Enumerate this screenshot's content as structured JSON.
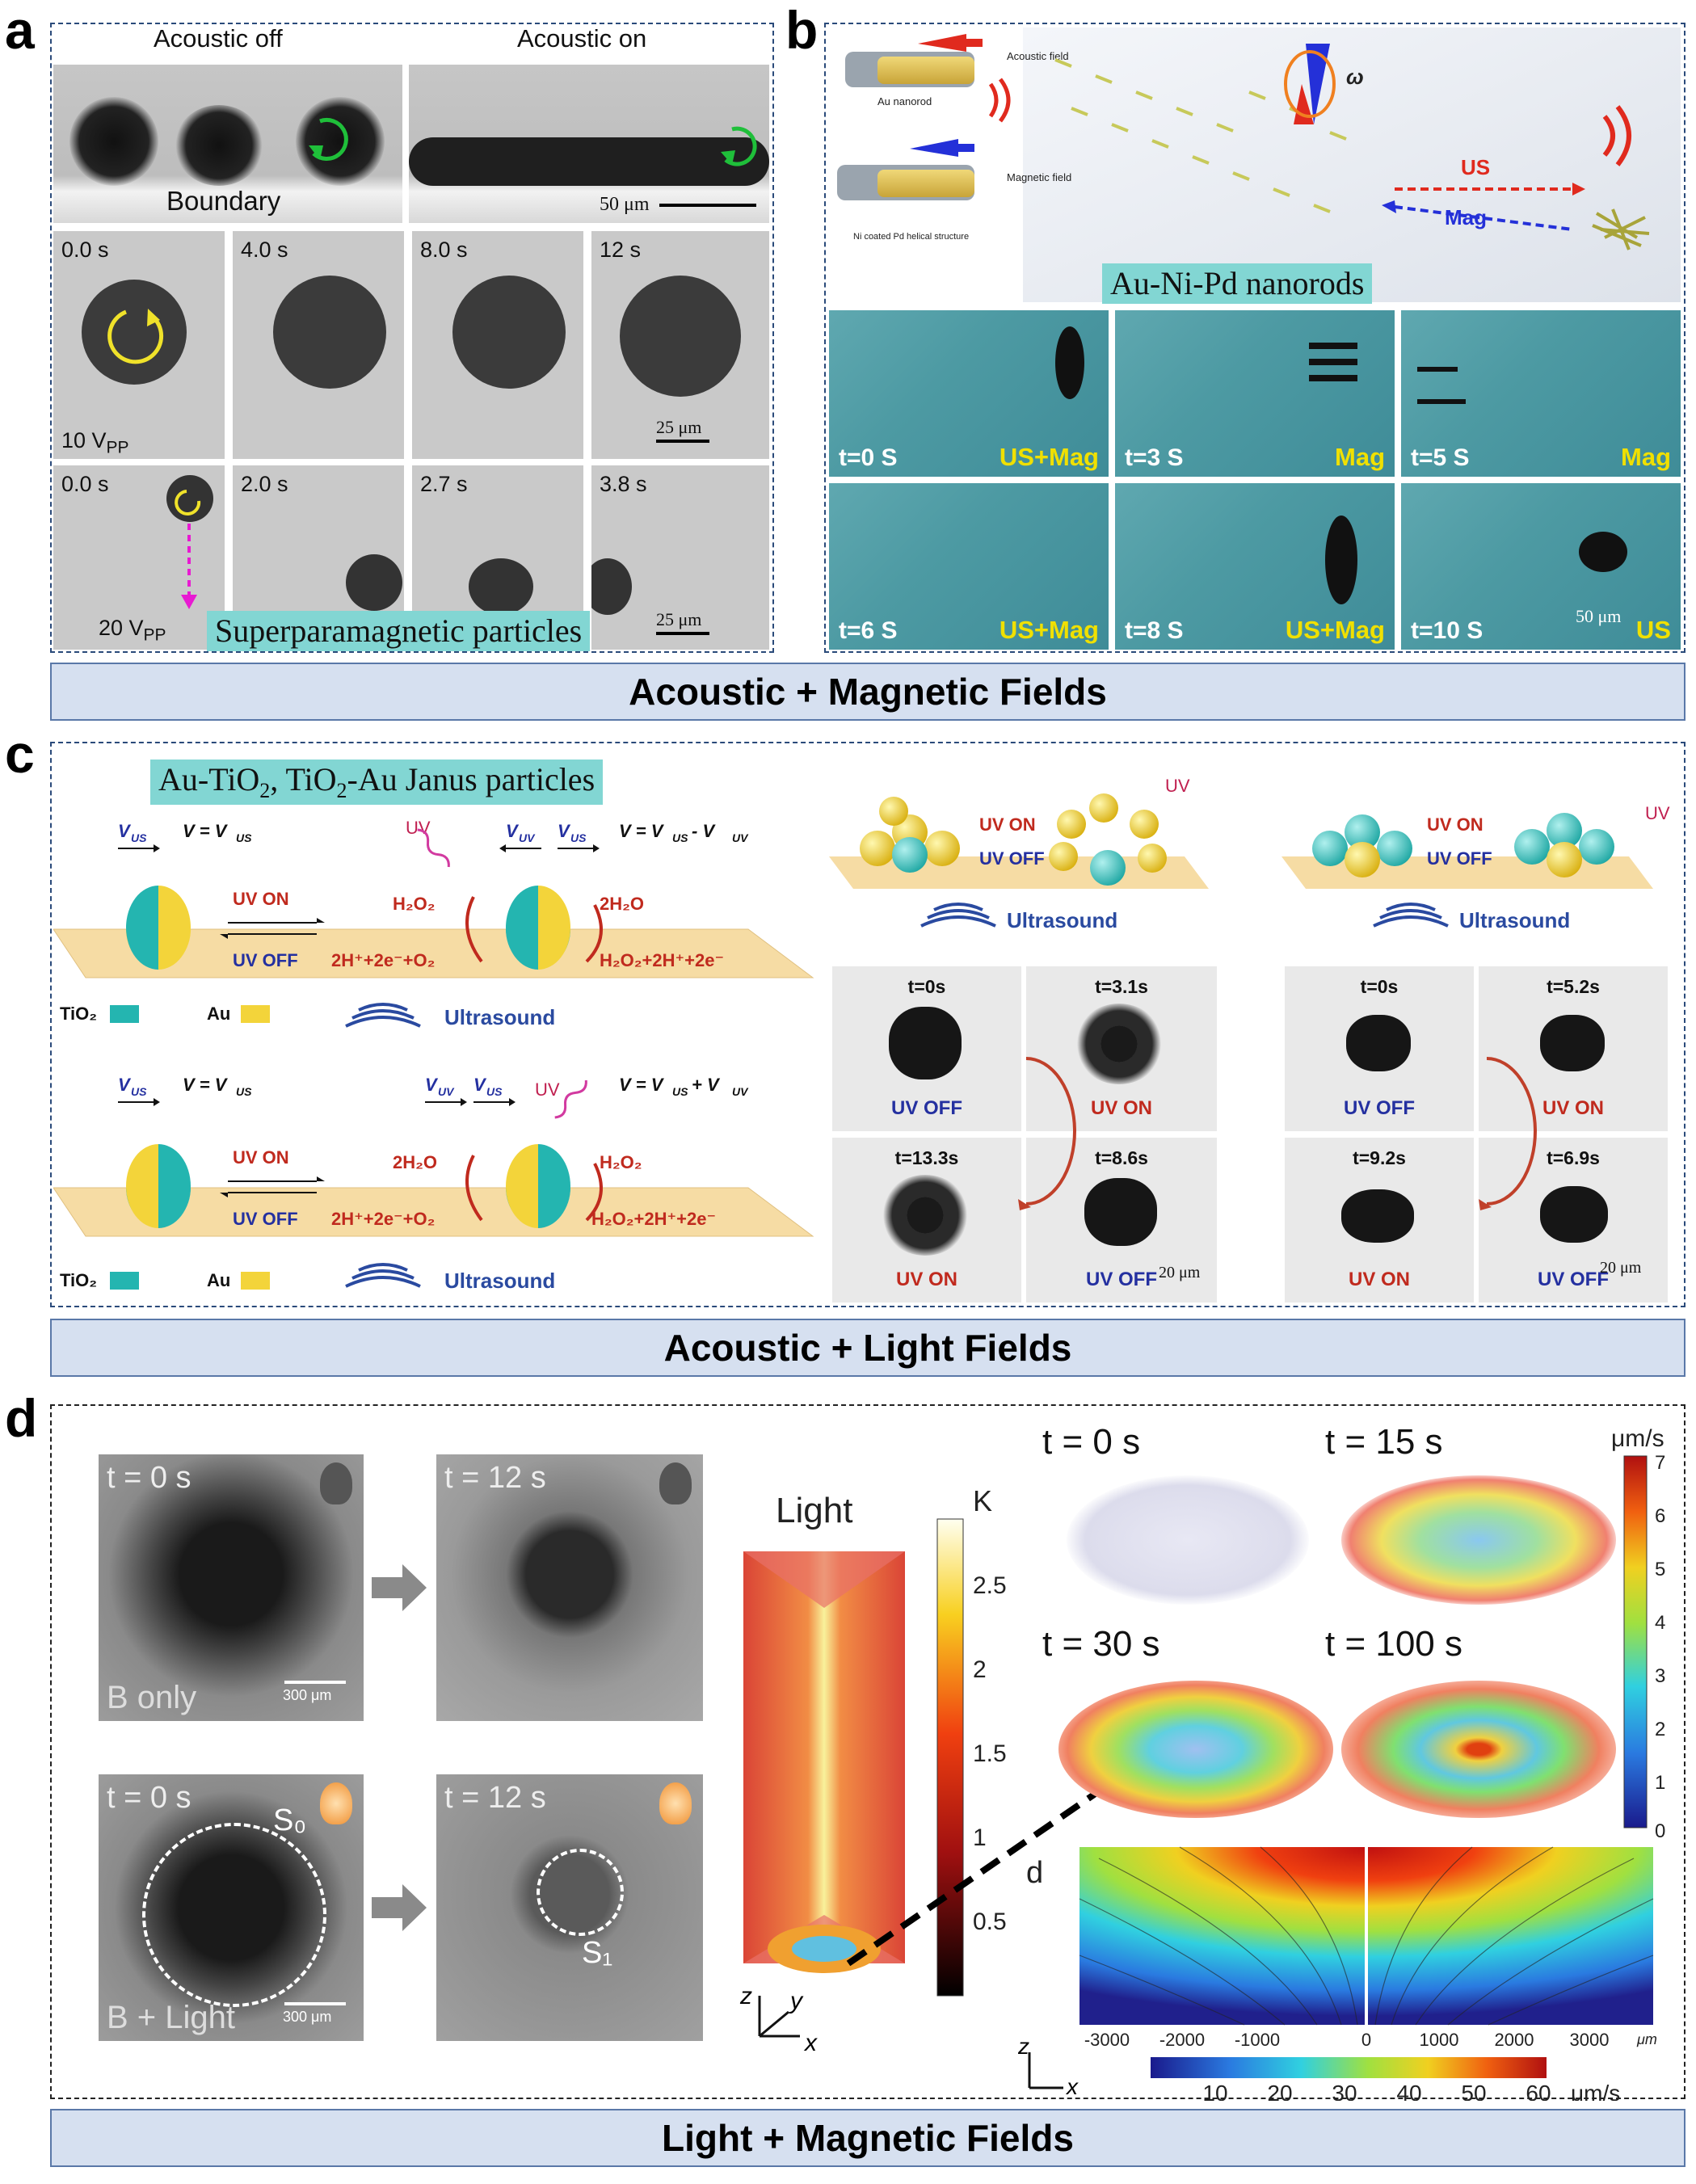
{
  "panel_a": {
    "letter": "a",
    "acoustic_off": "Acoustic off",
    "acoustic_on": "Acoustic on",
    "boundary": "Boundary",
    "scale_top": "50 μm",
    "row2_times": [
      "0.0 s",
      "4.0 s",
      "8.0 s",
      "12 s"
    ],
    "row2_voltage": "10 V",
    "row2_voltage_sub": "PP",
    "row2_scale": "25 μm",
    "row3_times": [
      "0.0 s",
      "2.0 s",
      "2.7 s",
      "3.8 s"
    ],
    "row3_voltage": "20 V",
    "row3_voltage_sub": "PP",
    "row3_scale": "25 μm",
    "caption": "Superparamagnetic particles"
  },
  "panel_b": {
    "letter": "b",
    "au_nanorod": "Au nanorod",
    "acoustic_field": "Acoustic field",
    "magnetic_field": "Magnetic field",
    "ni_coated": "Ni coated Pd helical structure",
    "us": "US",
    "mag": "Mag",
    "omega": "ω",
    "caption": "Au-Ni-Pd nanorods",
    "frames": [
      {
        "t": "t=0 S",
        "mode": "US+Mag"
      },
      {
        "t": "t=3 S",
        "mode": "Mag"
      },
      {
        "t": "t=5 S",
        "mode": "Mag"
      },
      {
        "t": "t=6 S",
        "mode": "US+Mag"
      },
      {
        "t": "t=8 S",
        "mode": "US+Mag"
      },
      {
        "t": "t=10 S",
        "mode": "US"
      }
    ],
    "scale": "50 μm"
  },
  "bar_ab": "Acoustic + Magnetic Fields",
  "panel_c": {
    "letter": "c",
    "caption_pre": "Au-TiO",
    "caption_mid": ", TiO",
    "caption_post": "-Au Janus particles",
    "caption_sub": "2",
    "v_us": "V",
    "v_us_sub": "US",
    "v_uv_sub": "UV",
    "eq1": "V = V",
    "eq2_tail": " - V",
    "eq3_tail": " + V",
    "uv": "UV",
    "uv_on": "UV ON",
    "uv_off": "UV OFF",
    "h2o2": "H₂O₂",
    "two_h2o": "2H₂O",
    "react_a": "2H⁺+2e⁻+O₂",
    "react_b": "H₂O₂+2H⁺+2e⁻",
    "tio2": "TiO₂",
    "au": "Au",
    "ultrasound": "Ultrasound",
    "grid1": [
      {
        "t": "t=0s",
        "s": "UV OFF"
      },
      {
        "t": "t=3.1s",
        "s": "UV ON"
      },
      {
        "t": "t=13.3s",
        "s": "UV ON"
      },
      {
        "t": "t=8.6s",
        "s": "UV OFF"
      }
    ],
    "grid2": [
      {
        "t": "t=0s",
        "s": "UV OFF"
      },
      {
        "t": "t=5.2s",
        "s": "UV ON"
      },
      {
        "t": "t=9.2s",
        "s": "UV ON"
      },
      {
        "t": "t=6.9s",
        "s": "UV OFF"
      }
    ],
    "scale": "20 μm"
  },
  "bar_c": "Acoustic + Light Fields",
  "panel_d": {
    "letter": "d",
    "times_left": [
      "t = 0 s",
      "t = 12 s",
      "t = 0 s",
      "t = 12 s"
    ],
    "b_only": "B only",
    "b_light": "B + Light",
    "scale": "300 μm",
    "s0": "S₀",
    "s1": "S₁",
    "light": "Light",
    "k_unit": "K",
    "k_ticks": [
      "2.5",
      "2",
      "1.5",
      "1",
      "0.5"
    ],
    "axes": [
      "z",
      "y",
      "x"
    ],
    "sim_times": [
      "t = 0 s",
      "t = 15 s",
      "t = 30 s",
      "t = 100 s"
    ],
    "vel_unit": "μm/s",
    "vel_ticks": [
      "7",
      "6",
      "5",
      "4",
      "3",
      "2",
      "1",
      "0"
    ],
    "sub_letter": "d",
    "x_ticks": [
      "-3000",
      "-2000",
      "-1000",
      "0",
      "1000",
      "2000",
      "3000"
    ],
    "x_unit": "μm",
    "axes2": [
      "z",
      "x"
    ],
    "hbar_ticks": [
      "10",
      "20",
      "30",
      "40",
      "50",
      "60"
    ],
    "hbar_unit": "μm/s"
  },
  "bar_d": "Light + Magnetic Fields"
}
